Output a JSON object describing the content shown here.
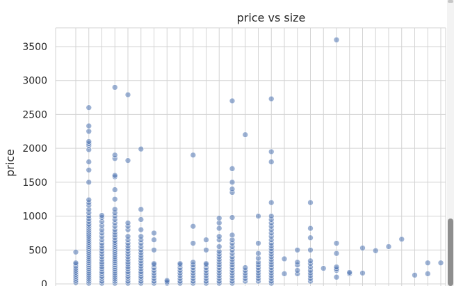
{
  "chart_data": {
    "type": "scatter",
    "title": "price vs size",
    "xlabel": "",
    "ylabel": "price",
    "ylim": [
      0,
      3800
    ],
    "yticks": [
      0,
      500,
      1000,
      1500,
      2000,
      2500,
      3000,
      3500
    ],
    "grid": true,
    "point_color": "#4c72b0",
    "x_categories": 29,
    "clusters": [
      {
        "x": 1,
        "values": [
          20,
          50,
          80,
          110,
          140,
          170,
          200,
          230,
          260,
          290,
          310,
          470
        ]
      },
      {
        "x": 2,
        "values": [
          10,
          40,
          70,
          100,
          130,
          160,
          190,
          220,
          250,
          280,
          310,
          340,
          370,
          400,
          430,
          460,
          490,
          520,
          550,
          580,
          610,
          640,
          670,
          700,
          730,
          760,
          790,
          820,
          850,
          880,
          920,
          960,
          1000,
          1050,
          1100,
          1160,
          1200,
          1240,
          1500,
          1680,
          1800,
          1980,
          2040,
          2070,
          2100,
          2250,
          2330,
          2600
        ]
      },
      {
        "x": 3,
        "values": [
          10,
          40,
          80,
          110,
          150,
          180,
          220,
          250,
          290,
          320,
          360,
          400,
          440,
          480,
          520,
          560,
          600,
          650,
          700,
          750,
          800,
          860,
          920,
          980,
          1010
        ]
      },
      {
        "x": 4,
        "values": [
          10,
          40,
          70,
          100,
          130,
          160,
          190,
          220,
          250,
          280,
          310,
          340,
          370,
          400,
          430,
          460,
          490,
          520,
          550,
          580,
          610,
          640,
          680,
          720,
          760,
          800,
          850,
          900,
          950,
          1000,
          1050,
          1100,
          1250,
          1390,
          1580,
          1600,
          1850,
          1900,
          2900
        ]
      },
      {
        "x": 5,
        "values": [
          10,
          40,
          80,
          110,
          150,
          180,
          220,
          250,
          290,
          320,
          360,
          400,
          440,
          480,
          520,
          560,
          600,
          650,
          700,
          800,
          850,
          900,
          1820,
          2790
        ]
      },
      {
        "x": 6,
        "values": [
          10,
          40,
          80,
          110,
          150,
          180,
          220,
          260,
          300,
          340,
          380,
          420,
          460,
          500,
          550,
          600,
          650,
          700,
          800,
          950,
          1100,
          1990
        ]
      },
      {
        "x": 7,
        "values": [
          10,
          40,
          80,
          120,
          160,
          200,
          240,
          280,
          300,
          500,
          650,
          750
        ]
      },
      {
        "x": 8,
        "values": [
          10,
          30,
          50
        ]
      },
      {
        "x": 9,
        "values": [
          10,
          40,
          80,
          120,
          160,
          200,
          240,
          280,
          300
        ]
      },
      {
        "x": 10,
        "values": [
          10,
          40,
          80,
          120,
          160,
          200,
          240,
          280,
          320,
          600,
          850,
          1900
        ]
      },
      {
        "x": 11,
        "values": [
          10,
          40,
          80,
          120,
          160,
          200,
          240,
          280,
          300,
          500,
          650
        ]
      },
      {
        "x": 12,
        "values": [
          10,
          40,
          80,
          120,
          160,
          200,
          240,
          280,
          320,
          360,
          400,
          440,
          480,
          550,
          650,
          700,
          820,
          900,
          970
        ]
      },
      {
        "x": 13,
        "values": [
          10,
          40,
          80,
          120,
          160,
          200,
          240,
          280,
          320,
          360,
          400,
          450,
          500,
          550,
          600,
          650,
          720,
          980,
          1350,
          1400,
          1500,
          1700,
          2700
        ]
      },
      {
        "x": 14,
        "values": [
          40,
          80,
          120,
          160,
          200,
          240,
          2200
        ]
      },
      {
        "x": 15,
        "values": [
          40,
          80,
          120,
          160,
          200,
          240,
          280,
          320,
          380,
          450,
          600,
          1000
        ]
      },
      {
        "x": 16,
        "values": [
          10,
          40,
          80,
          120,
          160,
          200,
          240,
          280,
          320,
          360,
          400,
          440,
          480,
          520,
          560,
          600,
          650,
          700,
          750,
          800,
          850,
          900,
          950,
          1000,
          1200,
          1800,
          1950,
          2730
        ]
      },
      {
        "x": 17,
        "values": [
          150,
          370
        ]
      },
      {
        "x": 18,
        "values": [
          150,
          200,
          280,
          320,
          500
        ]
      },
      {
        "x": 19,
        "values": [
          40,
          80,
          120,
          160,
          200,
          250,
          300,
          340,
          500,
          680,
          820,
          1200
        ]
      },
      {
        "x": 20,
        "values": [
          230
        ]
      },
      {
        "x": 21,
        "values": [
          100,
          200,
          220,
          250,
          450,
          600,
          3600
        ]
      },
      {
        "x": 22,
        "values": [
          150,
          170
        ]
      },
      {
        "x": 23,
        "values": [
          160,
          530
        ]
      },
      {
        "x": 24,
        "values": [
          490
        ]
      },
      {
        "x": 25,
        "values": [
          550
        ]
      },
      {
        "x": 26,
        "values": [
          660
        ]
      },
      {
        "x": 27,
        "values": [
          130
        ]
      },
      {
        "x": 28,
        "values": [
          150,
          310
        ]
      },
      {
        "x": 29,
        "values": [
          310
        ]
      }
    ]
  }
}
